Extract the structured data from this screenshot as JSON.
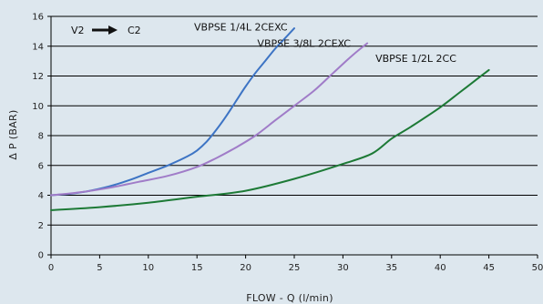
{
  "chart_data": {
    "type": "line",
    "title": "",
    "xlabel": "FLOW - Q (l/min)",
    "ylabel": "Δ P (BAR)",
    "xlim": [
      0,
      50
    ],
    "ylim": [
      0,
      16
    ],
    "xticks": [
      0,
      5,
      10,
      15,
      20,
      25,
      30,
      35,
      40,
      45,
      50
    ],
    "yticks": [
      0,
      2,
      4,
      6,
      8,
      10,
      12,
      14,
      16
    ],
    "grid": "horizontal",
    "legend": "inline labels near curve ends",
    "annotation": {
      "from": "V2",
      "to": "C2",
      "arrow_icon": "right-arrow-icon"
    },
    "series": [
      {
        "name": "VBPSE 1/4L 2CEXC",
        "color": "#3d74c4",
        "label_at": [
          19.5,
          15.3
        ],
        "x": [
          0,
          2,
          4,
          6,
          8,
          10,
          12,
          14,
          15,
          16,
          17,
          18,
          19,
          20,
          21,
          22,
          23,
          24,
          25
        ],
        "y": [
          4.0,
          4.1,
          4.3,
          4.6,
          5.0,
          5.5,
          6.0,
          6.6,
          7.0,
          7.6,
          8.4,
          9.3,
          10.3,
          11.3,
          12.2,
          13.0,
          13.8,
          14.5,
          15.2
        ]
      },
      {
        "name": "VBPSE 3/8L 2CEXC",
        "color": "#a07cc8",
        "label_at": [
          26.0,
          14.2
        ],
        "x": [
          0,
          3,
          6,
          9,
          12,
          15,
          17,
          19,
          21,
          23,
          25,
          27,
          29,
          31,
          32.5
        ],
        "y": [
          4.0,
          4.2,
          4.5,
          4.9,
          5.3,
          5.9,
          6.5,
          7.2,
          8.0,
          9.0,
          10.0,
          11.0,
          12.2,
          13.4,
          14.2
        ]
      },
      {
        "name": "VBPSE 1/2L 2CC",
        "color": "#1d7a36",
        "label_at": [
          37.5,
          13.2
        ],
        "x": [
          0,
          5,
          10,
          15,
          20,
          25,
          30,
          33,
          35,
          37,
          40,
          42,
          44,
          45
        ],
        "y": [
          3.0,
          3.2,
          3.5,
          3.9,
          4.3,
          5.1,
          6.1,
          6.8,
          7.8,
          8.6,
          9.9,
          10.9,
          11.9,
          12.4
        ]
      }
    ]
  }
}
